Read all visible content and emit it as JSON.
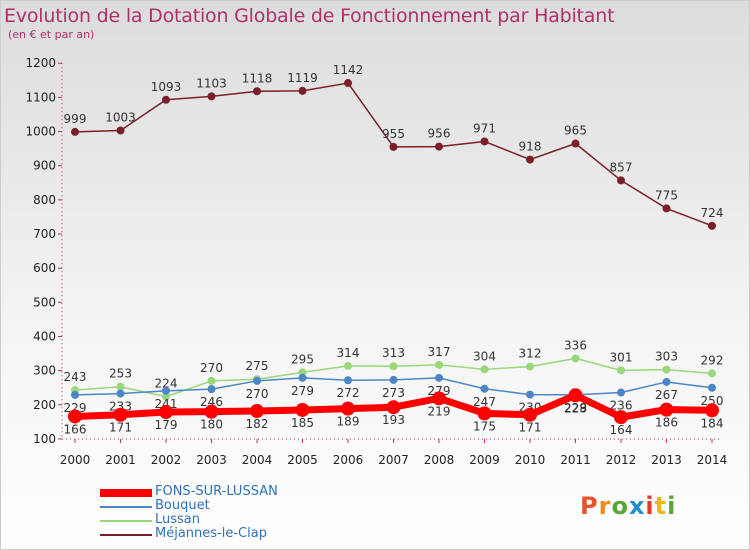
{
  "title": "Evolution de la Dotation Globale de Fonctionnement par Habitant",
  "subtitle": "(en € et par an)",
  "logo": {
    "text": "Proxiti",
    "colors": [
      "#e8542a",
      "#f28a1b",
      "#5aa53a",
      "#1f8fd0",
      "#e3382b",
      "#f2b51b",
      "#5aa53a"
    ]
  },
  "chart_data": {
    "type": "line",
    "title": "Evolution de la Dotation Globale de Fonctionnement par Habitant",
    "ylabel": "(en € et par an)",
    "xlabel": "",
    "ylim": [
      100,
      1200
    ],
    "yticks": [
      100,
      200,
      300,
      400,
      500,
      600,
      700,
      800,
      900,
      1000,
      1100,
      1200
    ],
    "categories": [
      "2000",
      "2001",
      "2002",
      "2003",
      "2004",
      "2005",
      "2006",
      "2007",
      "2008",
      "2009",
      "2010",
      "2011",
      "2012",
      "2013",
      "2014"
    ],
    "grid": false,
    "legend_position": "bottom-left",
    "series": [
      {
        "name": "Méjannes-le-Clap",
        "color": "#7a1f28",
        "values": [
          999,
          1003,
          1093,
          1103,
          1118,
          1119,
          1142,
          955,
          956,
          971,
          918,
          965,
          857,
          775,
          724
        ]
      },
      {
        "name": "Lussan",
        "color": "#9ad67a",
        "values": [
          243,
          253,
          224,
          270,
          275,
          295,
          314,
          313,
          317,
          304,
          312,
          336,
          301,
          303,
          292
        ]
      },
      {
        "name": "Bouquet",
        "color": "#4a86c8",
        "values": [
          229,
          233,
          241,
          246,
          270,
          279,
          272,
          273,
          279,
          247,
          230,
          229,
          236,
          267,
          250
        ]
      },
      {
        "name": "FONS-SUR-LUSSAN",
        "color": "#ff0000",
        "values": [
          166,
          171,
          179,
          180,
          182,
          185,
          189,
          193,
          219,
          175,
          171,
          228,
          164,
          186,
          184
        ]
      }
    ],
    "legend": [
      "FONS-SUR-LUSSAN",
      "Bouquet",
      "Lussan",
      "Méjannes-le-Clap"
    ]
  }
}
